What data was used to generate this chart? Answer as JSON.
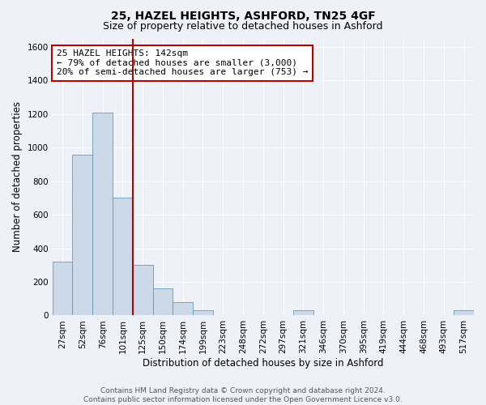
{
  "title": "25, HAZEL HEIGHTS, ASHFORD, TN25 4GF",
  "subtitle": "Size of property relative to detached houses in Ashford",
  "xlabel": "Distribution of detached houses by size in Ashford",
  "ylabel": "Number of detached properties",
  "footer_line1": "Contains HM Land Registry data © Crown copyright and database right 2024.",
  "footer_line2": "Contains public sector information licensed under the Open Government Licence v3.0.",
  "categories": [
    "27sqm",
    "52sqm",
    "76sqm",
    "101sqm",
    "125sqm",
    "150sqm",
    "174sqm",
    "199sqm",
    "223sqm",
    "248sqm",
    "272sqm",
    "297sqm",
    "321sqm",
    "346sqm",
    "370sqm",
    "395sqm",
    "419sqm",
    "444sqm",
    "468sqm",
    "493sqm",
    "517sqm"
  ],
  "values": [
    320,
    960,
    1210,
    700,
    300,
    160,
    80,
    30,
    0,
    0,
    0,
    0,
    30,
    0,
    0,
    0,
    0,
    0,
    0,
    0,
    30
  ],
  "bar_color": "#ccd9e8",
  "bar_edge_color": "#6699bb",
  "highlight_color": "#bb0000",
  "vline_index": 4,
  "annotation_line1": "25 HAZEL HEIGHTS: 142sqm",
  "annotation_line2": "← 79% of detached houses are smaller (3,000)",
  "annotation_line3": "20% of semi-detached houses are larger (753) →",
  "annotation_box_facecolor": "#ffffff",
  "annotation_box_edgecolor": "#bb0000",
  "ylim": [
    0,
    1650
  ],
  "yticks": [
    0,
    200,
    400,
    600,
    800,
    1000,
    1200,
    1400,
    1600
  ],
  "background_color": "#eef2f8",
  "plot_bg_color": "#eef2f8",
  "grid_color": "#ffffff",
  "title_fontsize": 10,
  "subtitle_fontsize": 9,
  "axis_label_fontsize": 8.5,
  "tick_fontsize": 7.5,
  "annotation_fontsize": 8,
  "footer_fontsize": 6.5
}
